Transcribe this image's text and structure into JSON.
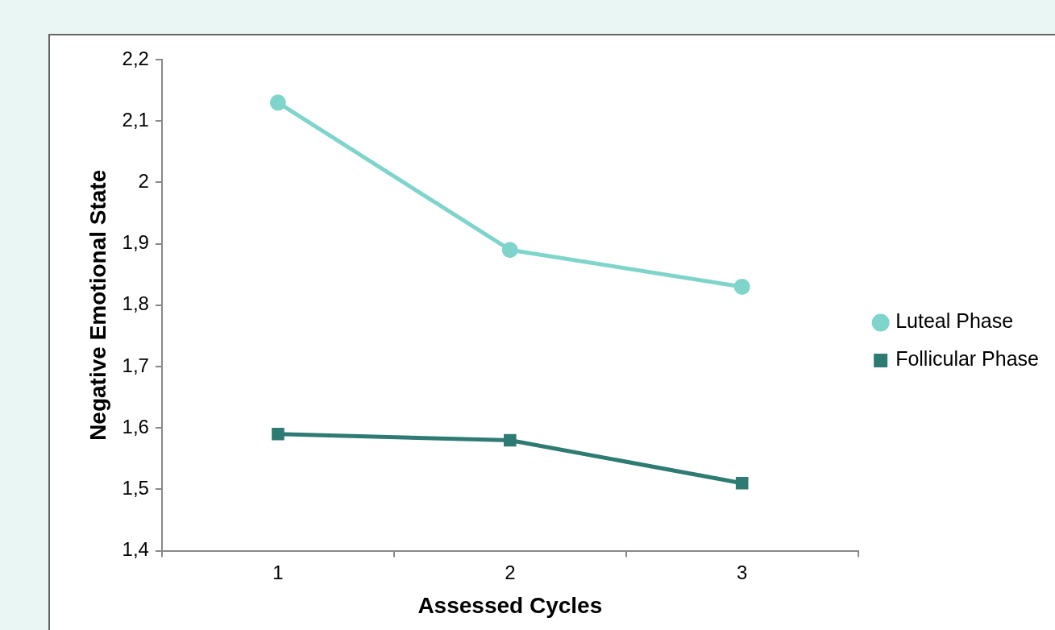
{
  "chart_data": {
    "type": "line",
    "xlabel": "Assessed Cycles",
    "ylabel": "Negative Emotional State",
    "categories": [
      "1",
      "2",
      "3"
    ],
    "series": [
      {
        "name": "Luteal Phase",
        "color": "#7fd4cb",
        "marker": "circle",
        "values": [
          2.13,
          1.89,
          1.83
        ]
      },
      {
        "name": "Follicular Phase",
        "color": "#2e7b73",
        "marker": "square",
        "values": [
          1.59,
          1.58,
          1.51
        ]
      }
    ],
    "ylim": [
      1.4,
      2.2
    ],
    "yticks": [
      {
        "value": 1.4,
        "label": "1,4"
      },
      {
        "value": 1.5,
        "label": "1,5"
      },
      {
        "value": 1.6,
        "label": "1,6"
      },
      {
        "value": 1.7,
        "label": "1,7"
      },
      {
        "value": 1.8,
        "label": "1,8"
      },
      {
        "value": 1.9,
        "label": "1,9"
      },
      {
        "value": 2,
        "label": "2"
      },
      {
        "value": 2.1,
        "label": "2,1"
      },
      {
        "value": 2.2,
        "label": "2,2"
      }
    ],
    "grid": false,
    "legend": "right",
    "line_style": "solid"
  }
}
